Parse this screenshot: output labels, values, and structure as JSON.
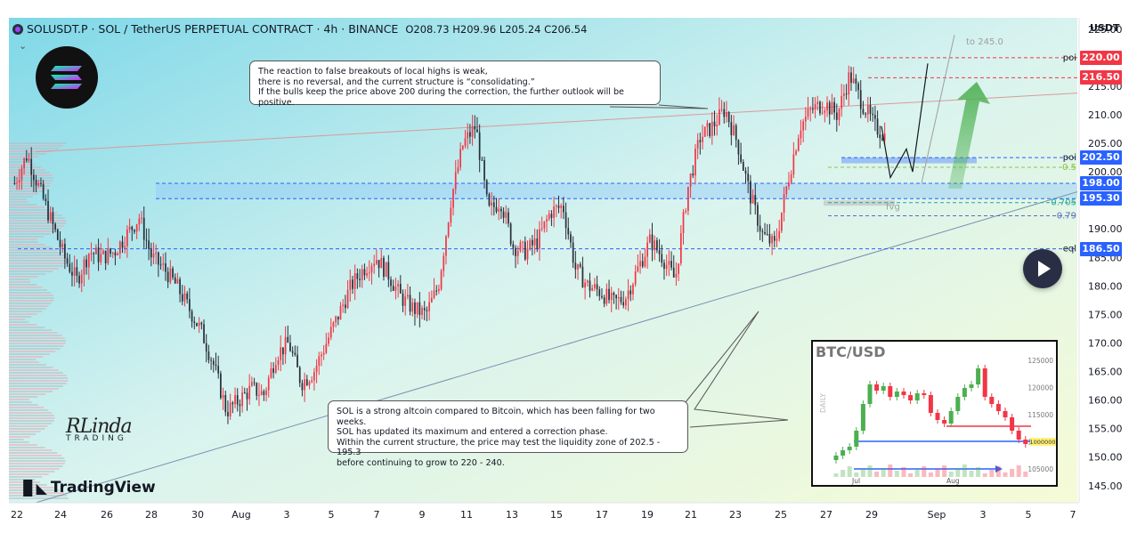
{
  "header": {
    "symbol": "SOLUSDT.P · SOL / TetherUS PERPETUAL CONTRACT · 4h · BINANCE",
    "ohlc": "O208.73 H209.96 L205.24 C206.54"
  },
  "axis_unit": "USDT",
  "notes": {
    "top": [
      "The reaction to false breakouts of local highs is weak,",
      "there is no reversal, and the current structure is “consolidating.”",
      "If the bulls keep the price above 200 during the correction, the further outlook will be positive."
    ],
    "bottom": [
      "SOL is a strong altcoin compared to Bitcoin, which has been falling for two weeks.",
      "SOL has updated its maximum and entered a correction phase.",
      "Within the current structure, the price may test the liquidity zone of 202.5 - 195.3",
      "before continuing to grow to 220 - 240."
    ]
  },
  "branding": {
    "tradingview": "TradingView",
    "author_big": "RLinda",
    "author_sub": "TRADING"
  },
  "level_labels": {
    "poi_top": "poi",
    "poi_mid": "poi",
    "eql": "eql",
    "fib_05": "0.5",
    "fib_0705": "0.705",
    "fib_079": "0.79",
    "target": "to 245.0",
    "fvg": "fvg"
  },
  "colors": {
    "bull": "#f23645",
    "bear": "#2a2e39",
    "accent_red": "#f23645",
    "accent_blue": "#2962ff",
    "arrow_green": "#4caf50"
  },
  "inset": {
    "title": "BTC/USD",
    "side_label": "DAILY",
    "yticks": [
      "125000",
      "120000",
      "115000",
      "110000",
      "105000"
    ],
    "xticks": [
      "Jul",
      "Aug"
    ],
    "current_price_label": "1000000"
  },
  "chart_data": {
    "type": "candlestick",
    "symbol": "SOLUSDT.P",
    "timeframe": "4h",
    "ylim": [
      142,
      227
    ],
    "y_ticks": [
      145,
      150,
      155,
      160,
      165,
      170,
      175,
      180,
      185,
      190,
      195,
      200,
      205,
      210,
      215,
      220,
      225
    ],
    "x_ticks": [
      "22",
      "24",
      "26",
      "28",
      "30",
      "Aug",
      "3",
      "5",
      "7",
      "9",
      "11",
      "13",
      "15",
      "17",
      "19",
      "21",
      "23",
      "25",
      "27",
      "29",
      "Sep",
      "3",
      "5",
      "7"
    ],
    "price_tags": [
      {
        "value": "220.00",
        "color": "#f23645"
      },
      {
        "value": "216.50",
        "color": "#f23645"
      },
      {
        "value": "202.50",
        "color": "#2962ff"
      },
      {
        "value": "198.00",
        "color": "#2962ff"
      },
      {
        "value": "195.30",
        "color": "#2962ff"
      },
      {
        "value": "186.50",
        "color": "#2962ff"
      }
    ],
    "close_path": [
      [
        0,
        198
      ],
      [
        2,
        203
      ],
      [
        4,
        197
      ],
      [
        6,
        191
      ],
      [
        8,
        185
      ],
      [
        10,
        181
      ],
      [
        12,
        186
      ],
      [
        14,
        185
      ],
      [
        16,
        186
      ],
      [
        18,
        189
      ],
      [
        20,
        192
      ],
      [
        22,
        185
      ],
      [
        24,
        183
      ],
      [
        26,
        180
      ],
      [
        28,
        176
      ],
      [
        30,
        172
      ],
      [
        32,
        166
      ],
      [
        34,
        158
      ],
      [
        36,
        160
      ],
      [
        38,
        162
      ],
      [
        40,
        161
      ],
      [
        42,
        168
      ],
      [
        44,
        170
      ],
      [
        46,
        163
      ],
      [
        48,
        165
      ],
      [
        50,
        170
      ],
      [
        52,
        175
      ],
      [
        54,
        180
      ],
      [
        56,
        183
      ],
      [
        58,
        185
      ],
      [
        60,
        182
      ],
      [
        62,
        178
      ],
      [
        64,
        176
      ],
      [
        66,
        175
      ],
      [
        68,
        180
      ],
      [
        70,
        195
      ],
      [
        72,
        205
      ],
      [
        74,
        208
      ],
      [
        76,
        193
      ],
      [
        78,
        195
      ],
      [
        80,
        187
      ],
      [
        82,
        186
      ],
      [
        84,
        188
      ],
      [
        86,
        193
      ],
      [
        88,
        194
      ],
      [
        90,
        183
      ],
      [
        92,
        180
      ],
      [
        94,
        179
      ],
      [
        96,
        177
      ],
      [
        98,
        178
      ],
      [
        100,
        183
      ],
      [
        102,
        188
      ],
      [
        104,
        185
      ],
      [
        106,
        181
      ],
      [
        108,
        197
      ],
      [
        110,
        206
      ],
      [
        112,
        208
      ],
      [
        114,
        211
      ],
      [
        116,
        205
      ],
      [
        118,
        196
      ],
      [
        120,
        189
      ],
      [
        122,
        187
      ],
      [
        124,
        198
      ],
      [
        126,
        208
      ],
      [
        128,
        211
      ],
      [
        130,
        212
      ],
      [
        132,
        210
      ],
      [
        134,
        217
      ],
      [
        136,
        212
      ],
      [
        138,
        208
      ],
      [
        140,
        206
      ]
    ],
    "targets": {
      "poi_high": 220.0,
      "level_2": 216.5,
      "poi_low": 202.5,
      "level_4": 198.0,
      "level_5": 195.3,
      "eql": 186.5,
      "target": 245.0
    }
  }
}
